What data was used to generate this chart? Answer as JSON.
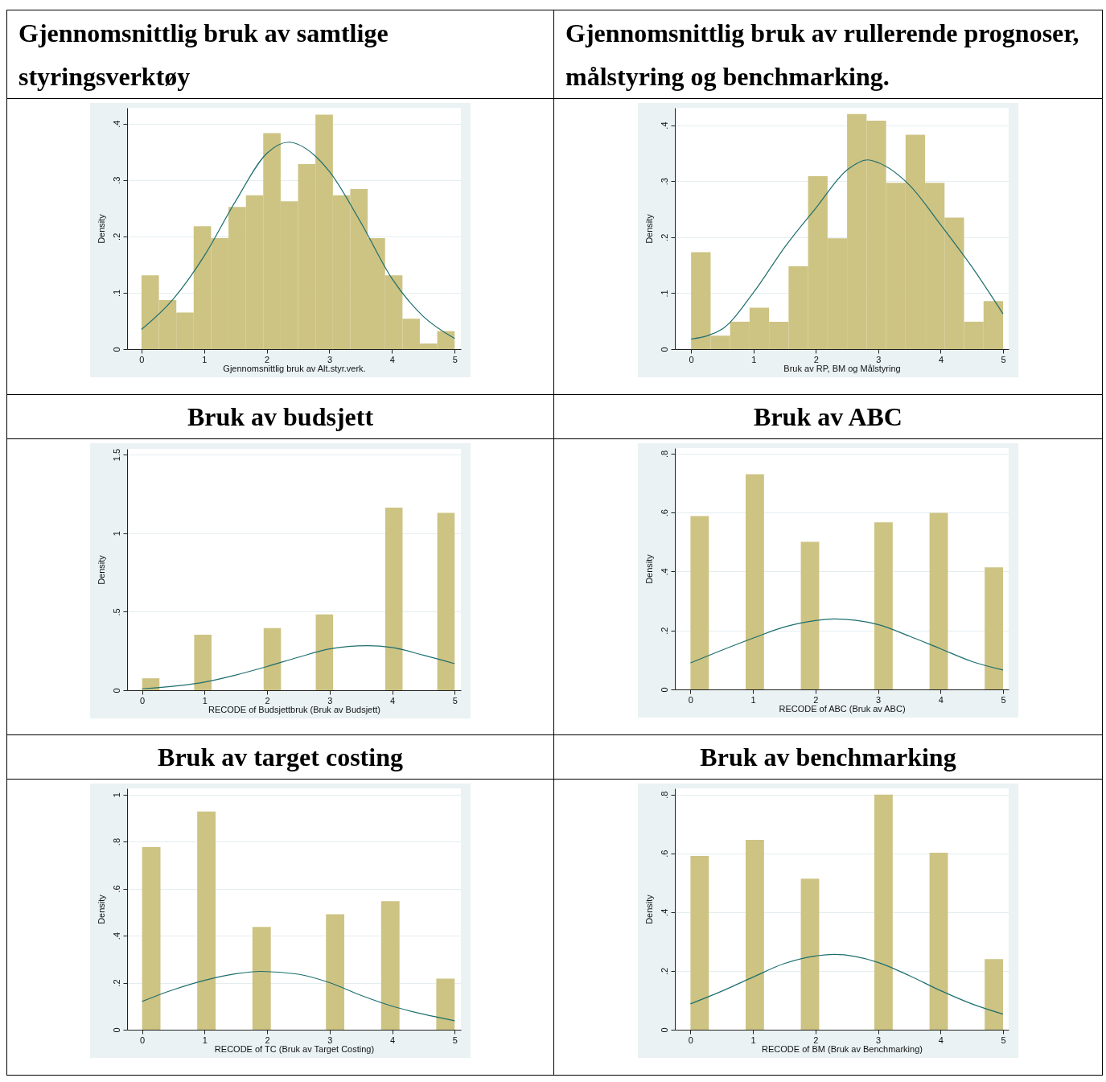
{
  "chart_data": [
    {
      "type": "histogram",
      "title": "Gjennomsnittlig bruk av samtlige styringsverktøy",
      "xlabel": "Gjennomsnittlig bruk av Alt.styr.verk.",
      "ylabel": "Density",
      "bins": [
        0,
        0.278,
        0.556,
        0.833,
        1.111,
        1.389,
        1.667,
        1.944,
        2.222,
        2.5,
        2.778,
        3.056,
        3.333,
        3.611,
        3.889,
        4.167,
        4.444,
        4.722,
        5
      ],
      "series": [
        {
          "color": "#cdc383",
          "values": [
            0.131,
            0.087,
            0.065,
            0.218,
            0.197,
            0.252,
            0.273,
            0.383,
            0.262,
            0.328,
            0.416,
            0.273,
            0.284,
            0.197,
            0.131,
            0.054,
            0.01,
            0.032
          ]
        },
        {
          "type": "line",
          "color": "#1d6e6e",
          "x": [
            0,
            0.5,
            1,
            1.5,
            2,
            2.35,
            2.75,
            3,
            3.5,
            4,
            4.5,
            5
          ],
          "values": [
            0.035,
            0.088,
            0.165,
            0.262,
            0.347,
            0.367,
            0.345,
            0.315,
            0.225,
            0.125,
            0.058,
            0.019
          ]
        }
      ],
      "xlim": [
        -0.23,
        5.1
      ],
      "ylim": [
        0,
        0.428
      ],
      "xticks": [
        0,
        1,
        2,
        3,
        4,
        5
      ],
      "yticks": [
        0,
        {
          "value": 0.1,
          "label": ".1"
        },
        {
          "value": 0.2,
          "label": ".2"
        },
        {
          "value": 0.3,
          "label": ".3"
        },
        {
          "value": 0.4,
          "label": ".4"
        }
      ],
      "grid": "y"
    },
    {
      "type": "histogram",
      "title": "Gjennomsnittlig bruk av rullerende prognoser, målstyring og benchmarking.",
      "xlabel": "Bruk av RP, BM og Målstyring",
      "ylabel": "Density",
      "bins": [
        0,
        0.3125,
        0.625,
        0.9375,
        1.25,
        1.5625,
        1.875,
        2.1875,
        2.5,
        2.8125,
        3.125,
        3.4375,
        3.75,
        4.0625,
        4.375,
        4.6875,
        5
      ],
      "series": [
        {
          "color": "#cdc383",
          "values": [
            0.173,
            0.024,
            0.049,
            0.074,
            0.049,
            0.148,
            0.309,
            0.198,
            0.42,
            0.408,
            0.297,
            0.383,
            0.297,
            0.235,
            0.049,
            0.086
          ]
        },
        {
          "type": "line",
          "color": "#1d6e6e",
          "x": [
            0,
            0.5,
            1,
            1.5,
            2,
            2.5,
            2.83,
            3,
            3.5,
            4,
            4.5,
            5
          ],
          "values": [
            0.018,
            0.036,
            0.101,
            0.182,
            0.252,
            0.32,
            0.338,
            0.333,
            0.293,
            0.222,
            0.147,
            0.063
          ]
        }
      ],
      "xlim": [
        -0.26,
        5.09
      ],
      "ylim": [
        0,
        0.431
      ],
      "xticks": [
        0,
        1,
        2,
        3,
        4,
        5
      ],
      "yticks": [
        0,
        {
          "value": 0.1,
          "label": ".1"
        },
        {
          "value": 0.2,
          "label": ".2"
        },
        {
          "value": 0.3,
          "label": ".3"
        },
        {
          "value": 0.4,
          "label": ".4"
        }
      ],
      "grid": "y"
    },
    {
      "type": "histogram",
      "title": "Bruk av budsjett",
      "xlabel": "RECODE of Budsjettbruk (Bruk av Budsjett)",
      "ylabel": "Density",
      "bins": [
        0,
        0.278,
        0.556,
        0.833,
        1.111,
        1.389,
        1.667,
        1.944,
        2.222,
        2.5,
        2.778,
        3.056,
        3.333,
        3.611,
        3.889,
        4.167,
        4.444,
        4.722,
        5
      ],
      "series": [
        {
          "color": "#cdc383",
          "values": [
            0.076,
            0,
            0,
            0.353,
            0,
            0,
            0,
            0.396,
            0,
            0,
            0.482,
            0,
            0,
            0,
            1.162,
            0,
            0,
            1.129
          ]
        },
        {
          "type": "line",
          "color": "#1d6e6e",
          "x": [
            0,
            1,
            1.5,
            2,
            2.5,
            3,
            3.6,
            4,
            4.5,
            5
          ],
          "values": [
            0.009,
            0.052,
            0.097,
            0.151,
            0.21,
            0.263,
            0.284,
            0.272,
            0.223,
            0.169
          ]
        }
      ],
      "xlim": [
        -0.24,
        5.1
      ],
      "ylim": [
        0,
        1.536
      ],
      "xticks": [
        0,
        1,
        2,
        3,
        4,
        5
      ],
      "yticks": [
        0,
        {
          "value": 0.5,
          "label": ".5"
        },
        1,
        1.5
      ],
      "grid": "y"
    },
    {
      "type": "histogram",
      "title": "Bruk av ABC",
      "xlabel": "RECODE of ABC (Bruk av ABC)",
      "ylabel": "Density",
      "bins": [
        0,
        0.294,
        0.588,
        0.882,
        1.176,
        1.471,
        1.765,
        2.059,
        2.353,
        2.647,
        2.941,
        3.235,
        3.529,
        3.824,
        4.118,
        4.412,
        4.706,
        5
      ],
      "series": [
        {
          "color": "#cdc383",
          "values": [
            0.588,
            0,
            0,
            0.73,
            0,
            0,
            0.501,
            0,
            0,
            0,
            0.567,
            0,
            0,
            0.599,
            0,
            0,
            0.414
          ]
        },
        {
          "type": "line",
          "color": "#1d6e6e",
          "x": [
            0,
            0.5,
            1,
            1.5,
            2,
            2.3,
            3,
            3.5,
            4,
            4.5,
            5
          ],
          "values": [
            0.09,
            0.133,
            0.174,
            0.212,
            0.234,
            0.239,
            0.22,
            0.181,
            0.138,
            0.095,
            0.066
          ]
        }
      ],
      "xlim": [
        -0.25,
        5.09
      ],
      "ylim": [
        0,
        0.819
      ],
      "xticks": [
        0,
        1,
        2,
        3,
        4,
        5
      ],
      "yticks": [
        0,
        {
          "value": 0.2,
          "label": ".2"
        },
        {
          "value": 0.4,
          "label": ".4"
        },
        {
          "value": 0.6,
          "label": ".6"
        },
        {
          "value": 0.8,
          "label": ".8"
        }
      ],
      "grid": "y"
    },
    {
      "type": "histogram",
      "title": "Bruk av target costing",
      "xlabel": "RECODE of TC (Bruk av Target Costing)",
      "ylabel": "Density",
      "bins": [
        0,
        0.294,
        0.588,
        0.882,
        1.176,
        1.471,
        1.765,
        2.059,
        2.353,
        2.647,
        2.941,
        3.235,
        3.529,
        3.824,
        4.118,
        4.412,
        4.706,
        5
      ],
      "series": [
        {
          "color": "#cdc383",
          "values": [
            0.776,
            0,
            0,
            0.928,
            0,
            0,
            0.437,
            0,
            0,
            0,
            0.491,
            0,
            0,
            0.546,
            0,
            0,
            0.217
          ]
        },
        {
          "type": "line",
          "color": "#1d6e6e",
          "x": [
            0,
            0.5,
            1,
            1.5,
            1.9,
            2.5,
            3,
            3.5,
            4,
            4.5,
            5
          ],
          "values": [
            0.12,
            0.17,
            0.21,
            0.238,
            0.248,
            0.236,
            0.2,
            0.146,
            0.1,
            0.066,
            0.038
          ]
        }
      ],
      "xlim": [
        -0.24,
        5.1
      ],
      "ylim": [
        0,
        1.026
      ],
      "xticks": [
        0,
        1,
        2,
        3,
        4,
        5
      ],
      "yticks": [
        0,
        {
          "value": 0.2,
          "label": ".2"
        },
        {
          "value": 0.4,
          "label": ".4"
        },
        {
          "value": 0.6,
          "label": ".6"
        },
        {
          "value": 0.8,
          "label": ".8"
        },
        1
      ],
      "grid": "y"
    },
    {
      "type": "histogram",
      "title": "Bruk av benchmarking",
      "xlabel": "RECODE of BM (Bruk av Benchmarking)",
      "ylabel": "Density",
      "bins": [
        0,
        0.294,
        0.588,
        0.882,
        1.176,
        1.471,
        1.765,
        2.059,
        2.353,
        2.647,
        2.941,
        3.235,
        3.529,
        3.824,
        4.118,
        4.412,
        4.706,
        5
      ],
      "series": [
        {
          "color": "#cdc383",
          "values": [
            0.591,
            0,
            0,
            0.646,
            0,
            0,
            0.514,
            0,
            0,
            0,
            0.8,
            0,
            0,
            0.602,
            0,
            0,
            0.24
          ]
        },
        {
          "type": "line",
          "color": "#1d6e6e",
          "x": [
            0,
            0.5,
            1,
            1.5,
            2,
            2.3,
            3,
            3.5,
            4,
            4.5,
            5
          ],
          "values": [
            0.088,
            0.131,
            0.179,
            0.225,
            0.251,
            0.256,
            0.229,
            0.184,
            0.133,
            0.088,
            0.053
          ]
        }
      ],
      "xlim": [
        -0.25,
        5.09
      ],
      "ylim": [
        0,
        0.821
      ],
      "xticks": [
        0,
        1,
        2,
        3,
        4,
        5
      ],
      "yticks": [
        0,
        {
          "value": 0.2,
          "label": ".2"
        },
        {
          "value": 0.4,
          "label": ".4"
        },
        {
          "value": 0.6,
          "label": ".6"
        },
        {
          "value": 0.8,
          "label": ".8"
        }
      ],
      "grid": "y"
    }
  ]
}
